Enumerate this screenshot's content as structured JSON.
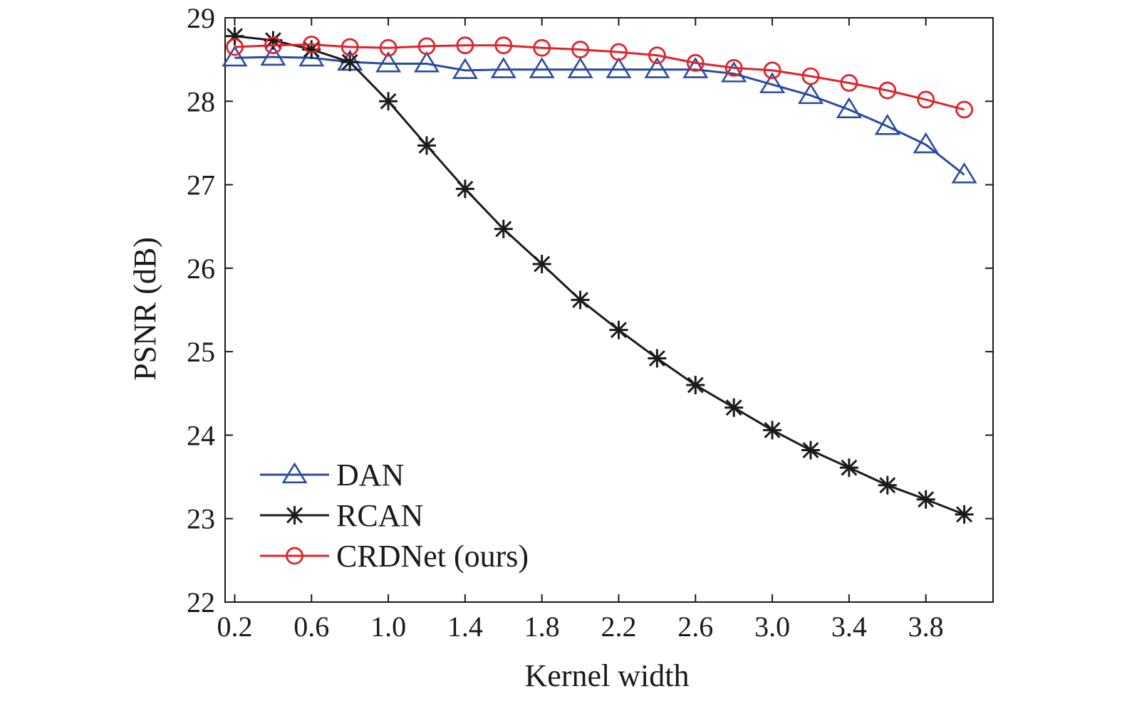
{
  "chart_data": {
    "type": "line",
    "title": "",
    "xlabel": "Kernel width",
    "ylabel": "PSNR (dB)",
    "xlim": [
      0.15,
      4.15
    ],
    "ylim": [
      22,
      29
    ],
    "x_ticks": [
      0.2,
      0.6,
      1.0,
      1.4,
      1.8,
      2.2,
      2.6,
      3.0,
      3.4,
      3.8
    ],
    "x_tick_labels": [
      "0.2",
      "0.6",
      "1.0",
      "1.4",
      "1.8",
      "2.2",
      "2.6",
      "3.0",
      "3.4",
      "3.8"
    ],
    "y_ticks": [
      22,
      23,
      24,
      25,
      26,
      27,
      28,
      29
    ],
    "y_tick_labels": [
      "22",
      "23",
      "24",
      "25",
      "26",
      "27",
      "28",
      "29"
    ],
    "grid": false,
    "legend_position": "lower-left",
    "x": [
      0.2,
      0.4,
      0.6,
      0.8,
      1.0,
      1.2,
      1.4,
      1.6,
      1.8,
      2.0,
      2.2,
      2.4,
      2.6,
      2.8,
      3.0,
      3.2,
      3.4,
      3.6,
      3.8,
      4.0
    ],
    "series": [
      {
        "name": "DAN",
        "color": "#2b4ba0",
        "marker": "triangle",
        "values": [
          28.52,
          28.53,
          28.52,
          28.47,
          28.45,
          28.45,
          28.37,
          28.38,
          28.38,
          28.38,
          28.38,
          28.38,
          28.38,
          28.33,
          28.2,
          28.07,
          27.9,
          27.7,
          27.48,
          27.12
        ]
      },
      {
        "name": "RCAN",
        "color": "#1a1a1a",
        "marker": "asterisk",
        "values": [
          28.78,
          28.73,
          28.62,
          28.47,
          28.0,
          27.47,
          26.95,
          26.47,
          26.05,
          25.62,
          25.26,
          24.92,
          24.6,
          24.33,
          24.06,
          23.82,
          23.61,
          23.4,
          23.23,
          23.05
        ]
      },
      {
        "name": "CRDNet (ours)",
        "color": "#e0232a",
        "marker": "circle",
        "values": [
          28.65,
          28.67,
          28.68,
          28.65,
          28.64,
          28.66,
          28.67,
          28.67,
          28.64,
          28.62,
          28.59,
          28.55,
          28.46,
          28.4,
          28.37,
          28.3,
          28.22,
          28.13,
          28.02,
          27.9
        ]
      }
    ]
  }
}
